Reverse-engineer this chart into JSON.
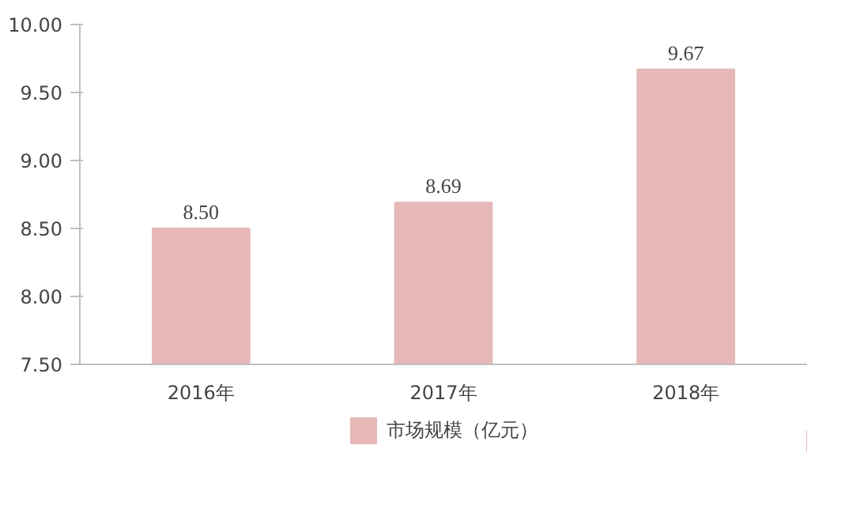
{
  "chart_data": {
    "type": "bar",
    "categories": [
      "2016年",
      "2017年",
      "2018年"
    ],
    "series": [
      {
        "name": "市场规模（亿元）",
        "color": "#e6b8b7",
        "values": [
          8.5,
          8.69,
          9.67
        ],
        "value_labels": [
          "8.50",
          "8.69",
          "9.67"
        ]
      }
    ],
    "ylim": [
      7.5,
      10.0
    ],
    "yticks": [
      {
        "value": 7.5,
        "label": "7.50"
      },
      {
        "value": 8.0,
        "label": "8.00"
      },
      {
        "value": 8.5,
        "label": "8.50"
      },
      {
        "value": 9.0,
        "label": "9.00"
      },
      {
        "value": 9.5,
        "label": "9.50"
      },
      {
        "value": 10.0,
        "label": "10.00"
      }
    ],
    "grid": false,
    "legend": "bottom"
  }
}
